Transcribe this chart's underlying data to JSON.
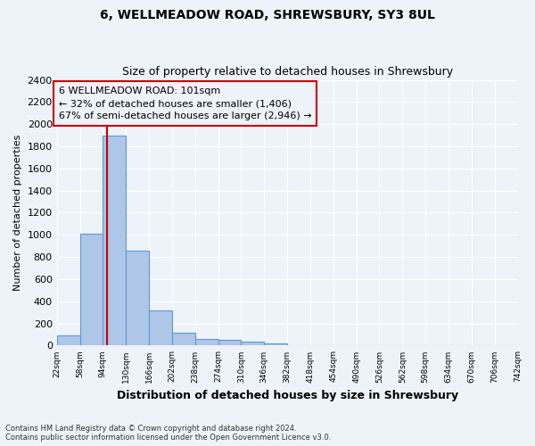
{
  "title1": "6, WELLMEADOW ROAD, SHREWSBURY, SY3 8UL",
  "title2": "Size of property relative to detached houses in Shrewsbury",
  "xlabel": "Distribution of detached houses by size in Shrewsbury",
  "ylabel": "Number of detached properties",
  "footer_line1": "Contains HM Land Registry data © Crown copyright and database right 2024.",
  "footer_line2": "Contains public sector information licensed under the Open Government Licence v3.0.",
  "bar_edges": [
    22,
    58,
    94,
    130,
    166,
    202,
    238,
    274,
    310,
    346,
    382,
    418,
    454,
    490,
    526,
    562,
    598,
    634,
    670,
    706,
    742
  ],
  "bar_heights": [
    90,
    1010,
    1900,
    860,
    315,
    120,
    58,
    50,
    32,
    20,
    0,
    0,
    0,
    0,
    0,
    0,
    0,
    0,
    0,
    0
  ],
  "bar_color": "#aec6e8",
  "bar_edge_color": "#5b9bd5",
  "property_size": 101,
  "property_line_color": "#cc0000",
  "annotation_line1": "6 WELLMEADOW ROAD: 101sqm",
  "annotation_line2": "← 32% of detached houses are smaller (1,406)",
  "annotation_line3": "67% of semi-detached houses are larger (2,946) →",
  "ylim": [
    0,
    2400
  ],
  "yticks": [
    0,
    200,
    400,
    600,
    800,
    1000,
    1200,
    1400,
    1600,
    1800,
    2000,
    2200,
    2400
  ],
  "bg_color": "#eef2f9",
  "grid_color": "#ffffff",
  "title1_fontsize": 10,
  "title2_fontsize": 9,
  "annotation_fontsize": 8
}
